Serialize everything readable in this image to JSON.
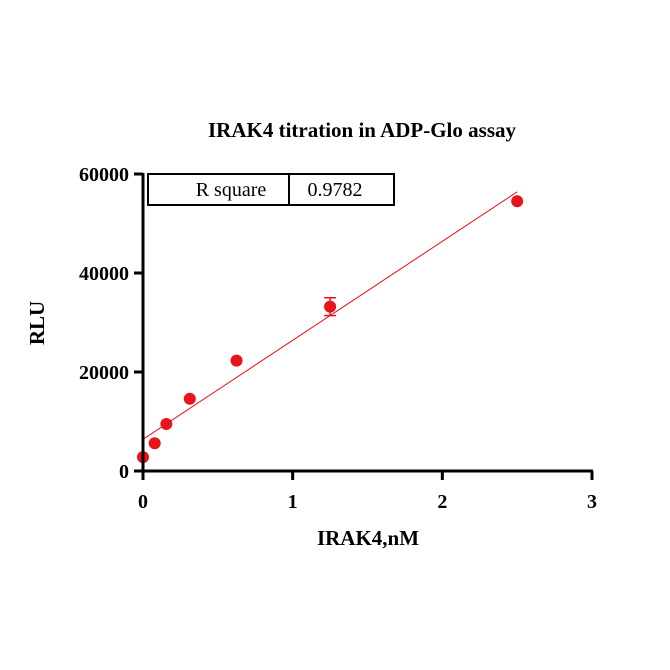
{
  "chart_data": {
    "type": "scatter",
    "title": "IRAK4 titration in ADP-Glo assay",
    "xlabel": "IRAK4,nM",
    "ylabel": "RLU",
    "xlim": [
      0,
      3
    ],
    "ylim": [
      0,
      60000
    ],
    "x_ticks": [
      0,
      1,
      2,
      3
    ],
    "y_ticks": [
      0,
      20000,
      40000,
      60000
    ],
    "x_tick_labels": [
      "0",
      "1",
      "2",
      "3"
    ],
    "y_tick_labels": [
      "0",
      "20000",
      "40000",
      "60000"
    ],
    "grid": false,
    "series": [
      {
        "x": [
          0,
          0.078,
          0.156,
          0.3125,
          0.625,
          1.25,
          2.5
        ],
        "y": [
          2800,
          5600,
          9500,
          14600,
          22300,
          33200,
          54500
        ],
        "y_err": [
          0,
          0,
          0,
          0,
          0,
          1800,
          0
        ],
        "color": "#e8141c"
      }
    ],
    "fit_line": {
      "x": [
        0,
        2.5
      ],
      "y": [
        6400,
        56400
      ],
      "color": "#e8141c"
    },
    "stats_table": {
      "label": "R square",
      "value": "0.9782"
    }
  }
}
